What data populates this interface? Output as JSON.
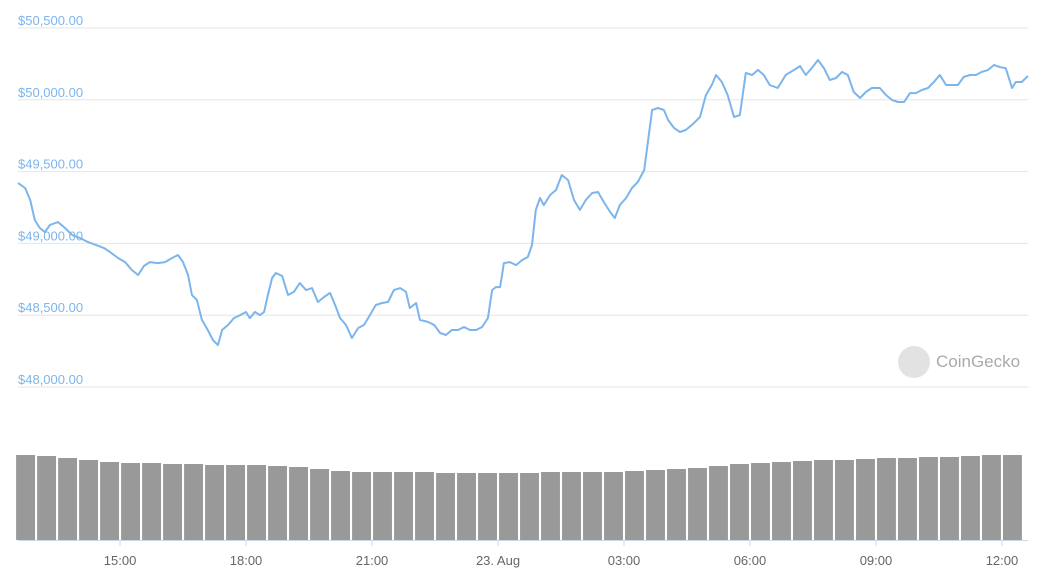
{
  "chart_data": [
    {
      "type": "line",
      "color": "#7cb5ec",
      "xlim": [
        12.57,
        36.62
      ],
      "ylim": [
        48000,
        50500
      ],
      "grid": true,
      "xticks": [
        {
          "value": 15,
          "label": "15:00"
        },
        {
          "value": 18,
          "label": "18:00"
        },
        {
          "value": 21,
          "label": "21:00"
        },
        {
          "value": 24,
          "label": "23. Aug"
        },
        {
          "value": 27,
          "label": "03:00"
        },
        {
          "value": 30,
          "label": "06:00"
        },
        {
          "value": 33,
          "label": "09:00"
        },
        {
          "value": 36,
          "label": "12:00"
        }
      ],
      "yticks": [
        {
          "value": 48000,
          "label": "$48,000.00"
        },
        {
          "value": 48500,
          "label": "$48,500.00"
        },
        {
          "value": 49000,
          "label": "$49,000.00"
        },
        {
          "value": 49500,
          "label": "$49,500.00"
        },
        {
          "value": 50000,
          "label": "$50,000.00"
        },
        {
          "value": 50500,
          "label": "$50,500.00"
        }
      ],
      "x": [
        12.57,
        12.74,
        12.86,
        12.97,
        13.09,
        13.21,
        13.33,
        13.52,
        13.69,
        13.86,
        14.05,
        14.24,
        14.43,
        14.62,
        14.76,
        14.95,
        15.12,
        15.28,
        15.43,
        15.57,
        15.71,
        15.9,
        16.07,
        16.24,
        16.38,
        16.5,
        16.62,
        16.71,
        16.83,
        16.95,
        17.09,
        17.21,
        17.33,
        17.43,
        17.57,
        17.71,
        17.86,
        18.0,
        18.09,
        18.21,
        18.33,
        18.43,
        18.52,
        18.62,
        18.71,
        18.86,
        19.0,
        19.14,
        19.28,
        19.43,
        19.57,
        19.71,
        19.86,
        20.0,
        20.12,
        20.24,
        20.38,
        20.52,
        20.67,
        20.81,
        20.95,
        21.09,
        21.24,
        21.38,
        21.52,
        21.67,
        21.81,
        21.9,
        22.05,
        22.14,
        22.33,
        22.48,
        22.62,
        22.76,
        22.9,
        23.05,
        23.19,
        23.33,
        23.48,
        23.62,
        23.76,
        23.86,
        23.95,
        24.05,
        24.14,
        24.28,
        24.43,
        24.57,
        24.71,
        24.81,
        24.9,
        25.0,
        25.09,
        25.24,
        25.38,
        25.52,
        25.67,
        25.81,
        25.95,
        26.09,
        26.24,
        26.38,
        26.52,
        26.67,
        26.78,
        26.9,
        27.05,
        27.19,
        27.33,
        27.48,
        27.57,
        27.67,
        27.81,
        27.95,
        28.05,
        28.19,
        28.33,
        28.47,
        28.62,
        28.81,
        28.95,
        29.09,
        29.19,
        29.33,
        29.47,
        29.62,
        29.76,
        29.9,
        30.05,
        30.19,
        30.33,
        30.47,
        30.66,
        30.85,
        31.05,
        31.19,
        31.33,
        31.47,
        31.62,
        31.76,
        31.9,
        32.05,
        32.19,
        32.33,
        32.47,
        32.62,
        32.76,
        32.9,
        33.09,
        33.24,
        33.38,
        33.52,
        33.67,
        33.81,
        33.95,
        34.09,
        34.24,
        34.38,
        34.52,
        34.67,
        34.81,
        34.95,
        35.09,
        35.24,
        35.38,
        35.52,
        35.67,
        35.81,
        35.95,
        36.09,
        36.24,
        36.33,
        36.47,
        36.62
      ],
      "values": [
        49421,
        49386,
        49302,
        49163,
        49107,
        49079,
        49128,
        49149,
        49107,
        49058,
        49037,
        49009,
        48988,
        48967,
        48940,
        48898,
        48870,
        48815,
        48780,
        48843,
        48870,
        48863,
        48870,
        48898,
        48919,
        48870,
        48780,
        48641,
        48606,
        48467,
        48397,
        48327,
        48292,
        48397,
        48432,
        48480,
        48501,
        48522,
        48480,
        48522,
        48501,
        48522,
        48641,
        48759,
        48794,
        48773,
        48641,
        48662,
        48724,
        48675,
        48689,
        48592,
        48627,
        48655,
        48571,
        48480,
        48432,
        48341,
        48411,
        48432,
        48501,
        48571,
        48585,
        48592,
        48675,
        48689,
        48662,
        48550,
        48585,
        48467,
        48453,
        48432,
        48376,
        48362,
        48397,
        48397,
        48418,
        48397,
        48397,
        48418,
        48480,
        48675,
        48696,
        48696,
        48863,
        48870,
        48849,
        48884,
        48905,
        48989,
        49233,
        49316,
        49267,
        49337,
        49372,
        49476,
        49441,
        49302,
        49233,
        49302,
        49351,
        49358,
        49288,
        49219,
        49177,
        49267,
        49316,
        49386,
        49428,
        49511,
        49706,
        49929,
        49943,
        49929,
        49859,
        49804,
        49776,
        49790,
        49825,
        49880,
        50033,
        50103,
        50173,
        50124,
        50033,
        49880,
        49894,
        50187,
        50173,
        50208,
        50173,
        50103,
        50082,
        50173,
        50208,
        50235,
        50173,
        50221,
        50277,
        50221,
        50138,
        50152,
        50194,
        50173,
        50054,
        50013,
        50054,
        50082,
        50082,
        50033,
        49999,
        49985,
        49985,
        50047,
        50047,
        50068,
        50082,
        50124,
        50173,
        50103,
        50103,
        50103,
        50159,
        50173,
        50173,
        50194,
        50208,
        50242,
        50228,
        50221,
        50082,
        50124,
        50124,
        50166
      ]
    },
    {
      "type": "bar",
      "color": "#999999",
      "ylim": [
        0,
        100
      ],
      "x": [
        12.75,
        13.25,
        13.75,
        14.25,
        14.75,
        15.25,
        15.75,
        16.25,
        16.75,
        17.25,
        17.75,
        18.25,
        18.75,
        19.25,
        19.75,
        20.25,
        20.75,
        21.25,
        21.75,
        22.25,
        22.75,
        23.25,
        23.75,
        24.25,
        24.75,
        25.25,
        25.75,
        26.25,
        26.75,
        27.25,
        27.75,
        28.25,
        28.75,
        29.25,
        29.75,
        30.25,
        30.75,
        31.25,
        31.75,
        32.25,
        32.75,
        33.25,
        33.75,
        34.25,
        34.75,
        35.25,
        35.75,
        36.25
      ],
      "values": [
        85,
        84,
        82,
        80,
        78,
        77,
        77,
        76,
        76,
        75,
        75,
        75,
        74,
        73,
        71,
        69,
        68,
        68,
        68,
        68,
        67,
        67,
        67,
        67,
        67,
        68,
        68,
        68,
        68,
        69,
        70,
        71,
        72,
        74,
        76,
        77,
        78,
        79,
        80,
        80,
        81,
        82,
        82,
        83,
        83,
        84,
        85,
        85
      ]
    }
  ],
  "watermark": "CoinGecko"
}
